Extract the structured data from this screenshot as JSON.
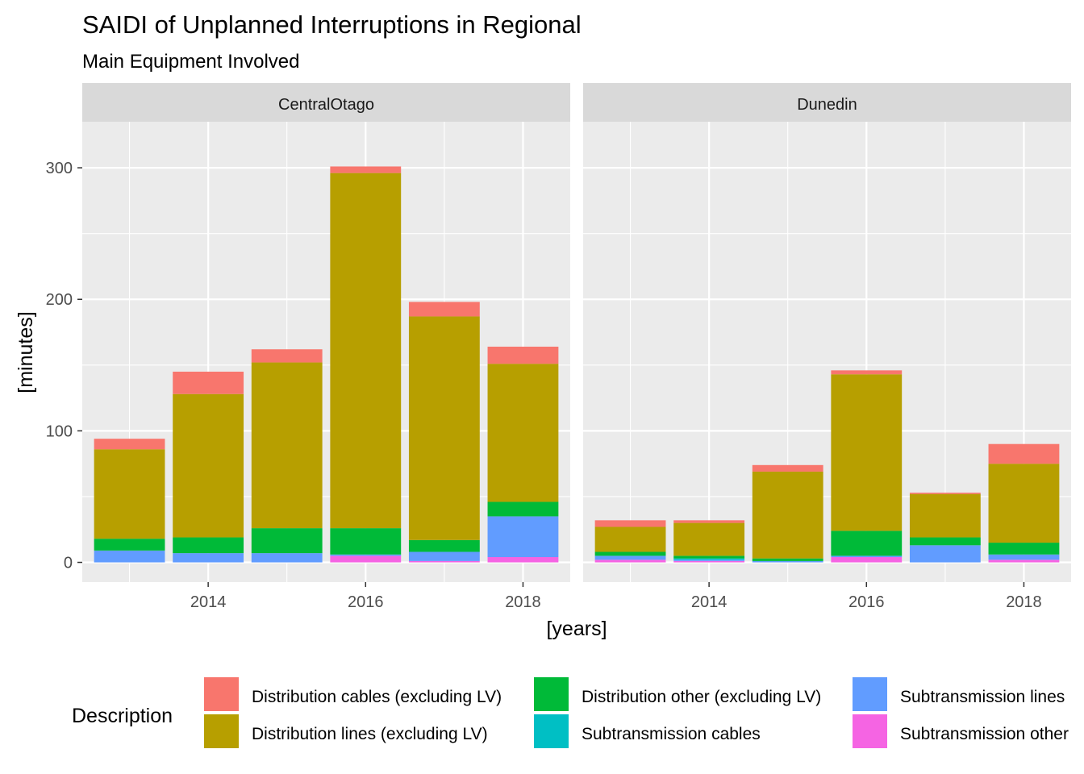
{
  "chart_data": {
    "type": "bar",
    "stacked": true,
    "title": "SAIDI of Unplanned Interruptions in Regional",
    "subtitle": "Main Equipment Involved",
    "xlabel": "[years]",
    "ylabel": "[minutes]",
    "ylim": [
      -15,
      335
    ],
    "yticks": [
      0,
      100,
      200,
      300
    ],
    "xlim": [
      2012.4,
      2018.6
    ],
    "xticks": [
      2014,
      2016,
      2018
    ],
    "x": [
      2013,
      2014,
      2015,
      2016,
      2017,
      2018
    ],
    "grid": true,
    "legend_position": "bottom",
    "legend_title": "Description",
    "series": [
      {
        "name": "Distribution cables (excluding LV)",
        "color": "#F8766D"
      },
      {
        "name": "Distribution lines (excluding LV)",
        "color": "#B79F00"
      },
      {
        "name": "Distribution other (excluding LV)",
        "color": "#00BA38"
      },
      {
        "name": "Subtransmission cables",
        "color": "#00BFC4"
      },
      {
        "name": "Subtransmission lines",
        "color": "#619CFF"
      },
      {
        "name": "Subtransmission other",
        "color": "#F564E3"
      }
    ],
    "stack_order": [
      "Subtransmission other",
      "Subtransmission lines",
      "Subtransmission cables",
      "Distribution other (excluding LV)",
      "Distribution lines (excluding LV)",
      "Distribution cables (excluding LV)"
    ],
    "panels": [
      {
        "name": "CentralOtago",
        "values": {
          "Distribution cables (excluding LV)": [
            8,
            17,
            10,
            5,
            11,
            13
          ],
          "Distribution lines (excluding LV)": [
            68,
            109,
            126,
            270,
            170,
            105
          ],
          "Distribution other (excluding LV)": [
            9,
            12,
            19,
            20,
            9,
            11
          ],
          "Subtransmission cables": [
            0,
            0,
            0,
            0,
            0,
            0
          ],
          "Subtransmission lines": [
            9,
            7,
            7,
            1,
            7,
            31
          ],
          "Subtransmission other": [
            0,
            0,
            0,
            5,
            1,
            4
          ]
        }
      },
      {
        "name": "Dunedin",
        "values": {
          "Distribution cables (excluding LV)": [
            5,
            2,
            5,
            3,
            1,
            15
          ],
          "Distribution lines (excluding LV)": [
            19,
            25,
            66,
            119,
            33,
            60
          ],
          "Distribution other (excluding LV)": [
            3,
            2,
            2,
            19,
            6,
            9
          ],
          "Subtransmission cables": [
            0,
            1,
            0,
            0,
            0,
            0
          ],
          "Subtransmission lines": [
            3,
            1,
            1,
            1,
            13,
            4
          ],
          "Subtransmission other": [
            2,
            1,
            0,
            4,
            0,
            2
          ]
        }
      }
    ]
  }
}
